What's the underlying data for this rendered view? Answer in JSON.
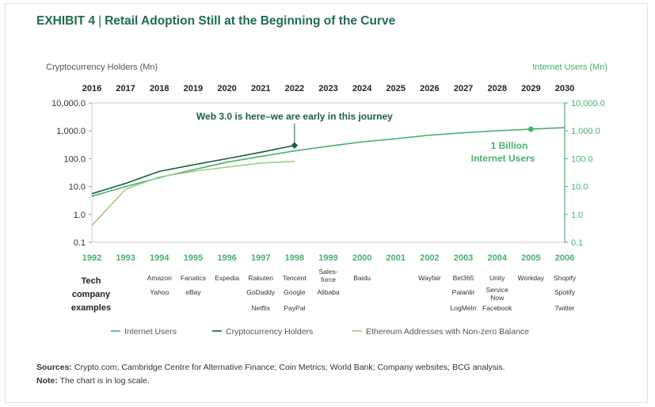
{
  "exhibit": {
    "label": "EXHIBIT 4",
    "separator": "|",
    "title": "Retail Adoption Still at the Beginning of the Curve"
  },
  "chart_data": {
    "type": "line",
    "scale": "log",
    "left_axis_label": "Cryptocurrency Holders (Mn)",
    "right_axis_label": "Internet Users (Mn)",
    "left_ticks": [
      "10,000.0",
      "1,000.0",
      "100.0",
      "10.0",
      "1.0",
      "0.1"
    ],
    "right_ticks": [
      "10,000.0",
      "1,000.0",
      "100.0",
      "10.0",
      "1.0",
      "0.1"
    ],
    "tick_values": [
      10000,
      1000,
      100,
      10,
      1,
      0.1
    ],
    "ylim": [
      0.1,
      10000
    ],
    "top_years": [
      "2016",
      "2017",
      "2018",
      "2019",
      "2020",
      "2021",
      "2022",
      "2023",
      "2024",
      "2025",
      "2026",
      "2027",
      "2028",
      "2029",
      "2030"
    ],
    "bottom_years": [
      "1992",
      "1993",
      "1994",
      "1995",
      "1996",
      "1997",
      "1998",
      "1999",
      "2000",
      "2001",
      "2002",
      "2003",
      "2004",
      "2005",
      "2006"
    ],
    "series": [
      {
        "name": "Internet Users",
        "axis": "bottom",
        "color": "#48b270",
        "x": [
          1992,
          1993,
          1994,
          1995,
          1996,
          1997,
          1998,
          1999,
          2000,
          2001,
          2002,
          2003,
          2004,
          2005,
          2006
        ],
        "values": [
          4.5,
          10,
          21,
          40,
          75,
          120,
          190,
          280,
          400,
          520,
          700,
          850,
          1000,
          1150,
          1300
        ]
      },
      {
        "name": "Cryptocurrency Holders",
        "axis": "top",
        "color": "#1b5e3e",
        "x": [
          2016,
          2017,
          2018,
          2019,
          2020,
          2021,
          2022
        ],
        "values": [
          5.5,
          13,
          35,
          60,
          100,
          170,
          300
        ]
      },
      {
        "name": "Ethereum Addresses with Non-zero Balance",
        "axis": "top",
        "color": "#9bd080",
        "x": [
          2016,
          2017,
          2018,
          2019,
          2020,
          2021,
          2022
        ],
        "values": [
          0.4,
          8,
          22,
          35,
          50,
          70,
          80
        ]
      }
    ],
    "annotations": [
      {
        "text": "Web 3.0 is here–we are early in this journey",
        "year": 2022,
        "value": 300
      },
      {
        "text_lines": [
          "1 Billion",
          "Internet Users"
        ],
        "year": 2005,
        "value": 1150
      }
    ],
    "tech_label_lines": [
      "Tech",
      "company",
      "examples"
    ],
    "tech_companies": [
      {
        "year": "1994",
        "names": [
          "Amazon",
          "Yahoo"
        ]
      },
      {
        "year": "1995",
        "names": [
          "Fanatics",
          "eBay"
        ]
      },
      {
        "year": "1996",
        "names": [
          "Expedia"
        ]
      },
      {
        "year": "1997",
        "names": [
          "Rakuten",
          "GoDaddy",
          "Netflix"
        ]
      },
      {
        "year": "1998",
        "names": [
          "Tencent",
          "Google",
          "PayPal"
        ]
      },
      {
        "year": "1999",
        "names": [
          "Sales-force",
          "Alibaba"
        ]
      },
      {
        "year": "2000",
        "names": [
          "Baidu"
        ]
      },
      {
        "year": "2002",
        "names": [
          "Wayfair"
        ]
      },
      {
        "year": "2003",
        "names": [
          "Bet365",
          "Palantir",
          "LogMeIn"
        ]
      },
      {
        "year": "2004",
        "names": [
          "Unity",
          "Service Now",
          "Facebook"
        ]
      },
      {
        "year": "2005",
        "names": [
          "Workday"
        ]
      },
      {
        "year": "2006",
        "names": [
          "Shopify",
          "Spotify",
          "Twitter"
        ]
      }
    ],
    "legend": [
      "Internet Users",
      "Cryptocurrency Holders",
      "Ethereum Addresses with Non-zero Balance"
    ]
  },
  "footer": {
    "sources_label": "Sources:",
    "sources_text": "Crypto.com; Cambridge Centre for Alternative Finance; Coin Metrics; World Bank; Company websites; BCG analysis.",
    "note_label": "Note:",
    "note_text": "The chart is in log scale."
  }
}
